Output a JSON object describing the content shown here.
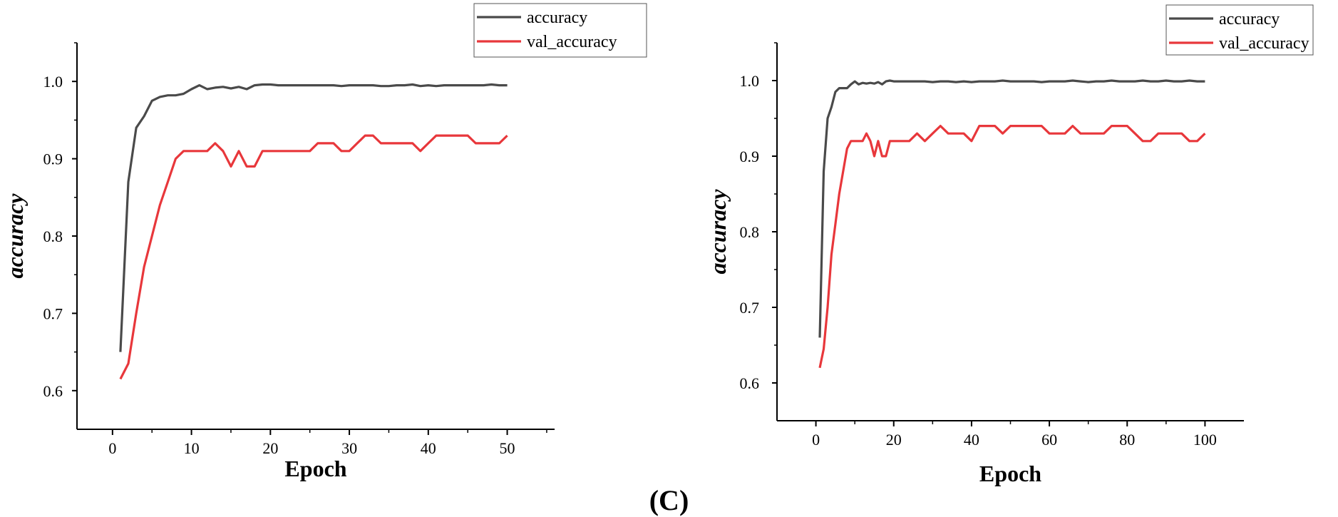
{
  "figure_label": "(C)",
  "chart_data": [
    {
      "type": "line",
      "xlabel": "Epoch",
      "ylabel": "accuracy",
      "xlim": [
        -4.5,
        56
      ],
      "ylim": [
        0.55,
        1.05
      ],
      "x_ticks": [
        0,
        10,
        20,
        30,
        40,
        50
      ],
      "y_ticks": [
        0.6,
        0.7,
        0.8,
        0.9,
        1.0
      ],
      "y_tick_labels": [
        "0.6",
        "0.7",
        "0.8",
        "0.9",
        "1.0"
      ],
      "legend_position": "top-right",
      "series": [
        {
          "name": "accuracy",
          "color": "#4a4a4a",
          "x": [
            1,
            2,
            3,
            4,
            5,
            6,
            7,
            8,
            9,
            10,
            11,
            12,
            13,
            14,
            15,
            16,
            17,
            18,
            19,
            20,
            21,
            22,
            23,
            24,
            25,
            26,
            27,
            28,
            29,
            30,
            31,
            32,
            33,
            34,
            35,
            36,
            37,
            38,
            39,
            40,
            41,
            42,
            43,
            44,
            45,
            46,
            47,
            48,
            49,
            50
          ],
          "y": [
            0.65,
            0.87,
            0.94,
            0.955,
            0.975,
            0.98,
            0.982,
            0.982,
            0.984,
            0.99,
            0.995,
            0.99,
            0.992,
            0.993,
            0.991,
            0.993,
            0.99,
            0.995,
            0.996,
            0.996,
            0.995,
            0.995,
            0.995,
            0.995,
            0.995,
            0.995,
            0.995,
            0.995,
            0.994,
            0.995,
            0.995,
            0.995,
            0.995,
            0.994,
            0.994,
            0.995,
            0.995,
            0.996,
            0.994,
            0.995,
            0.994,
            0.995,
            0.995,
            0.995,
            0.995,
            0.995,
            0.995,
            0.996,
            0.995,
            0.995
          ]
        },
        {
          "name": "val_accuracy",
          "color": "#e8373b",
          "x": [
            1,
            2,
            3,
            4,
            5,
            6,
            7,
            8,
            9,
            10,
            11,
            12,
            13,
            14,
            15,
            16,
            17,
            18,
            19,
            20,
            21,
            22,
            23,
            24,
            25,
            26,
            27,
            28,
            29,
            30,
            31,
            32,
            33,
            34,
            35,
            36,
            37,
            38,
            39,
            40,
            41,
            42,
            43,
            44,
            45,
            46,
            47,
            48,
            49,
            50
          ],
          "y": [
            0.615,
            0.635,
            0.7,
            0.76,
            0.8,
            0.84,
            0.87,
            0.9,
            0.91,
            0.91,
            0.91,
            0.91,
            0.92,
            0.91,
            0.89,
            0.91,
            0.89,
            0.89,
            0.91,
            0.91,
            0.91,
            0.91,
            0.91,
            0.91,
            0.91,
            0.92,
            0.92,
            0.92,
            0.91,
            0.91,
            0.92,
            0.93,
            0.93,
            0.92,
            0.92,
            0.92,
            0.92,
            0.92,
            0.91,
            0.92,
            0.93,
            0.93,
            0.93,
            0.93,
            0.93,
            0.92,
            0.92,
            0.92,
            0.92,
            0.93
          ]
        }
      ]
    },
    {
      "type": "line",
      "xlabel": "Epoch",
      "ylabel": "accuracy",
      "xlim": [
        -10,
        110
      ],
      "ylim": [
        0.55,
        1.05
      ],
      "x_ticks": [
        0,
        20,
        40,
        60,
        80,
        100
      ],
      "y_ticks": [
        0.6,
        0.7,
        0.8,
        0.9,
        1.0
      ],
      "y_tick_labels": [
        "0.6",
        "0.7",
        "0.8",
        "0.9",
        "1.0"
      ],
      "legend_position": "top-right",
      "series": [
        {
          "name": "accuracy",
          "color": "#4a4a4a",
          "x": [
            1,
            2,
            3,
            4,
            5,
            6,
            7,
            8,
            9,
            10,
            11,
            12,
            13,
            14,
            15,
            16,
            17,
            18,
            19,
            20,
            22,
            24,
            26,
            28,
            30,
            32,
            34,
            36,
            38,
            40,
            42,
            44,
            46,
            48,
            50,
            52,
            54,
            56,
            58,
            60,
            62,
            64,
            66,
            68,
            70,
            72,
            74,
            76,
            78,
            80,
            82,
            84,
            86,
            88,
            90,
            92,
            94,
            96,
            98,
            100
          ],
          "y": [
            0.66,
            0.88,
            0.95,
            0.965,
            0.985,
            0.99,
            0.99,
            0.99,
            0.995,
            0.999,
            0.995,
            0.997,
            0.996,
            0.997,
            0.996,
            0.998,
            0.995,
            0.999,
            1.0,
            0.999,
            0.999,
            0.999,
            0.999,
            0.999,
            0.998,
            0.999,
            0.999,
            0.998,
            0.999,
            0.998,
            0.999,
            0.999,
            0.999,
            1.0,
            0.999,
            0.999,
            0.999,
            0.999,
            0.998,
            0.999,
            0.999,
            0.999,
            1.0,
            0.999,
            0.998,
            0.999,
            0.999,
            1.0,
            0.999,
            0.999,
            0.999,
            1.0,
            0.999,
            0.999,
            1.0,
            0.999,
            0.999,
            1.0,
            0.999,
            0.999
          ]
        },
        {
          "name": "val_accuracy",
          "color": "#e8373b",
          "x": [
            1,
            2,
            3,
            4,
            5,
            6,
            7,
            8,
            9,
            10,
            11,
            12,
            13,
            14,
            15,
            16,
            17,
            18,
            19,
            20,
            22,
            24,
            26,
            28,
            30,
            32,
            34,
            36,
            38,
            40,
            42,
            44,
            46,
            48,
            50,
            52,
            54,
            56,
            58,
            60,
            62,
            64,
            66,
            68,
            70,
            72,
            74,
            76,
            78,
            80,
            82,
            84,
            86,
            88,
            90,
            92,
            94,
            96,
            98,
            100
          ],
          "y": [
            0.62,
            0.645,
            0.7,
            0.77,
            0.81,
            0.85,
            0.88,
            0.91,
            0.92,
            0.92,
            0.92,
            0.92,
            0.93,
            0.92,
            0.9,
            0.92,
            0.9,
            0.9,
            0.92,
            0.92,
            0.92,
            0.92,
            0.93,
            0.92,
            0.93,
            0.94,
            0.93,
            0.93,
            0.93,
            0.92,
            0.94,
            0.94,
            0.94,
            0.93,
            0.94,
            0.94,
            0.94,
            0.94,
            0.94,
            0.93,
            0.93,
            0.93,
            0.94,
            0.93,
            0.93,
            0.93,
            0.93,
            0.94,
            0.94,
            0.94,
            0.93,
            0.92,
            0.92,
            0.93,
            0.93,
            0.93,
            0.93,
            0.92,
            0.92,
            0.93
          ]
        }
      ]
    }
  ]
}
